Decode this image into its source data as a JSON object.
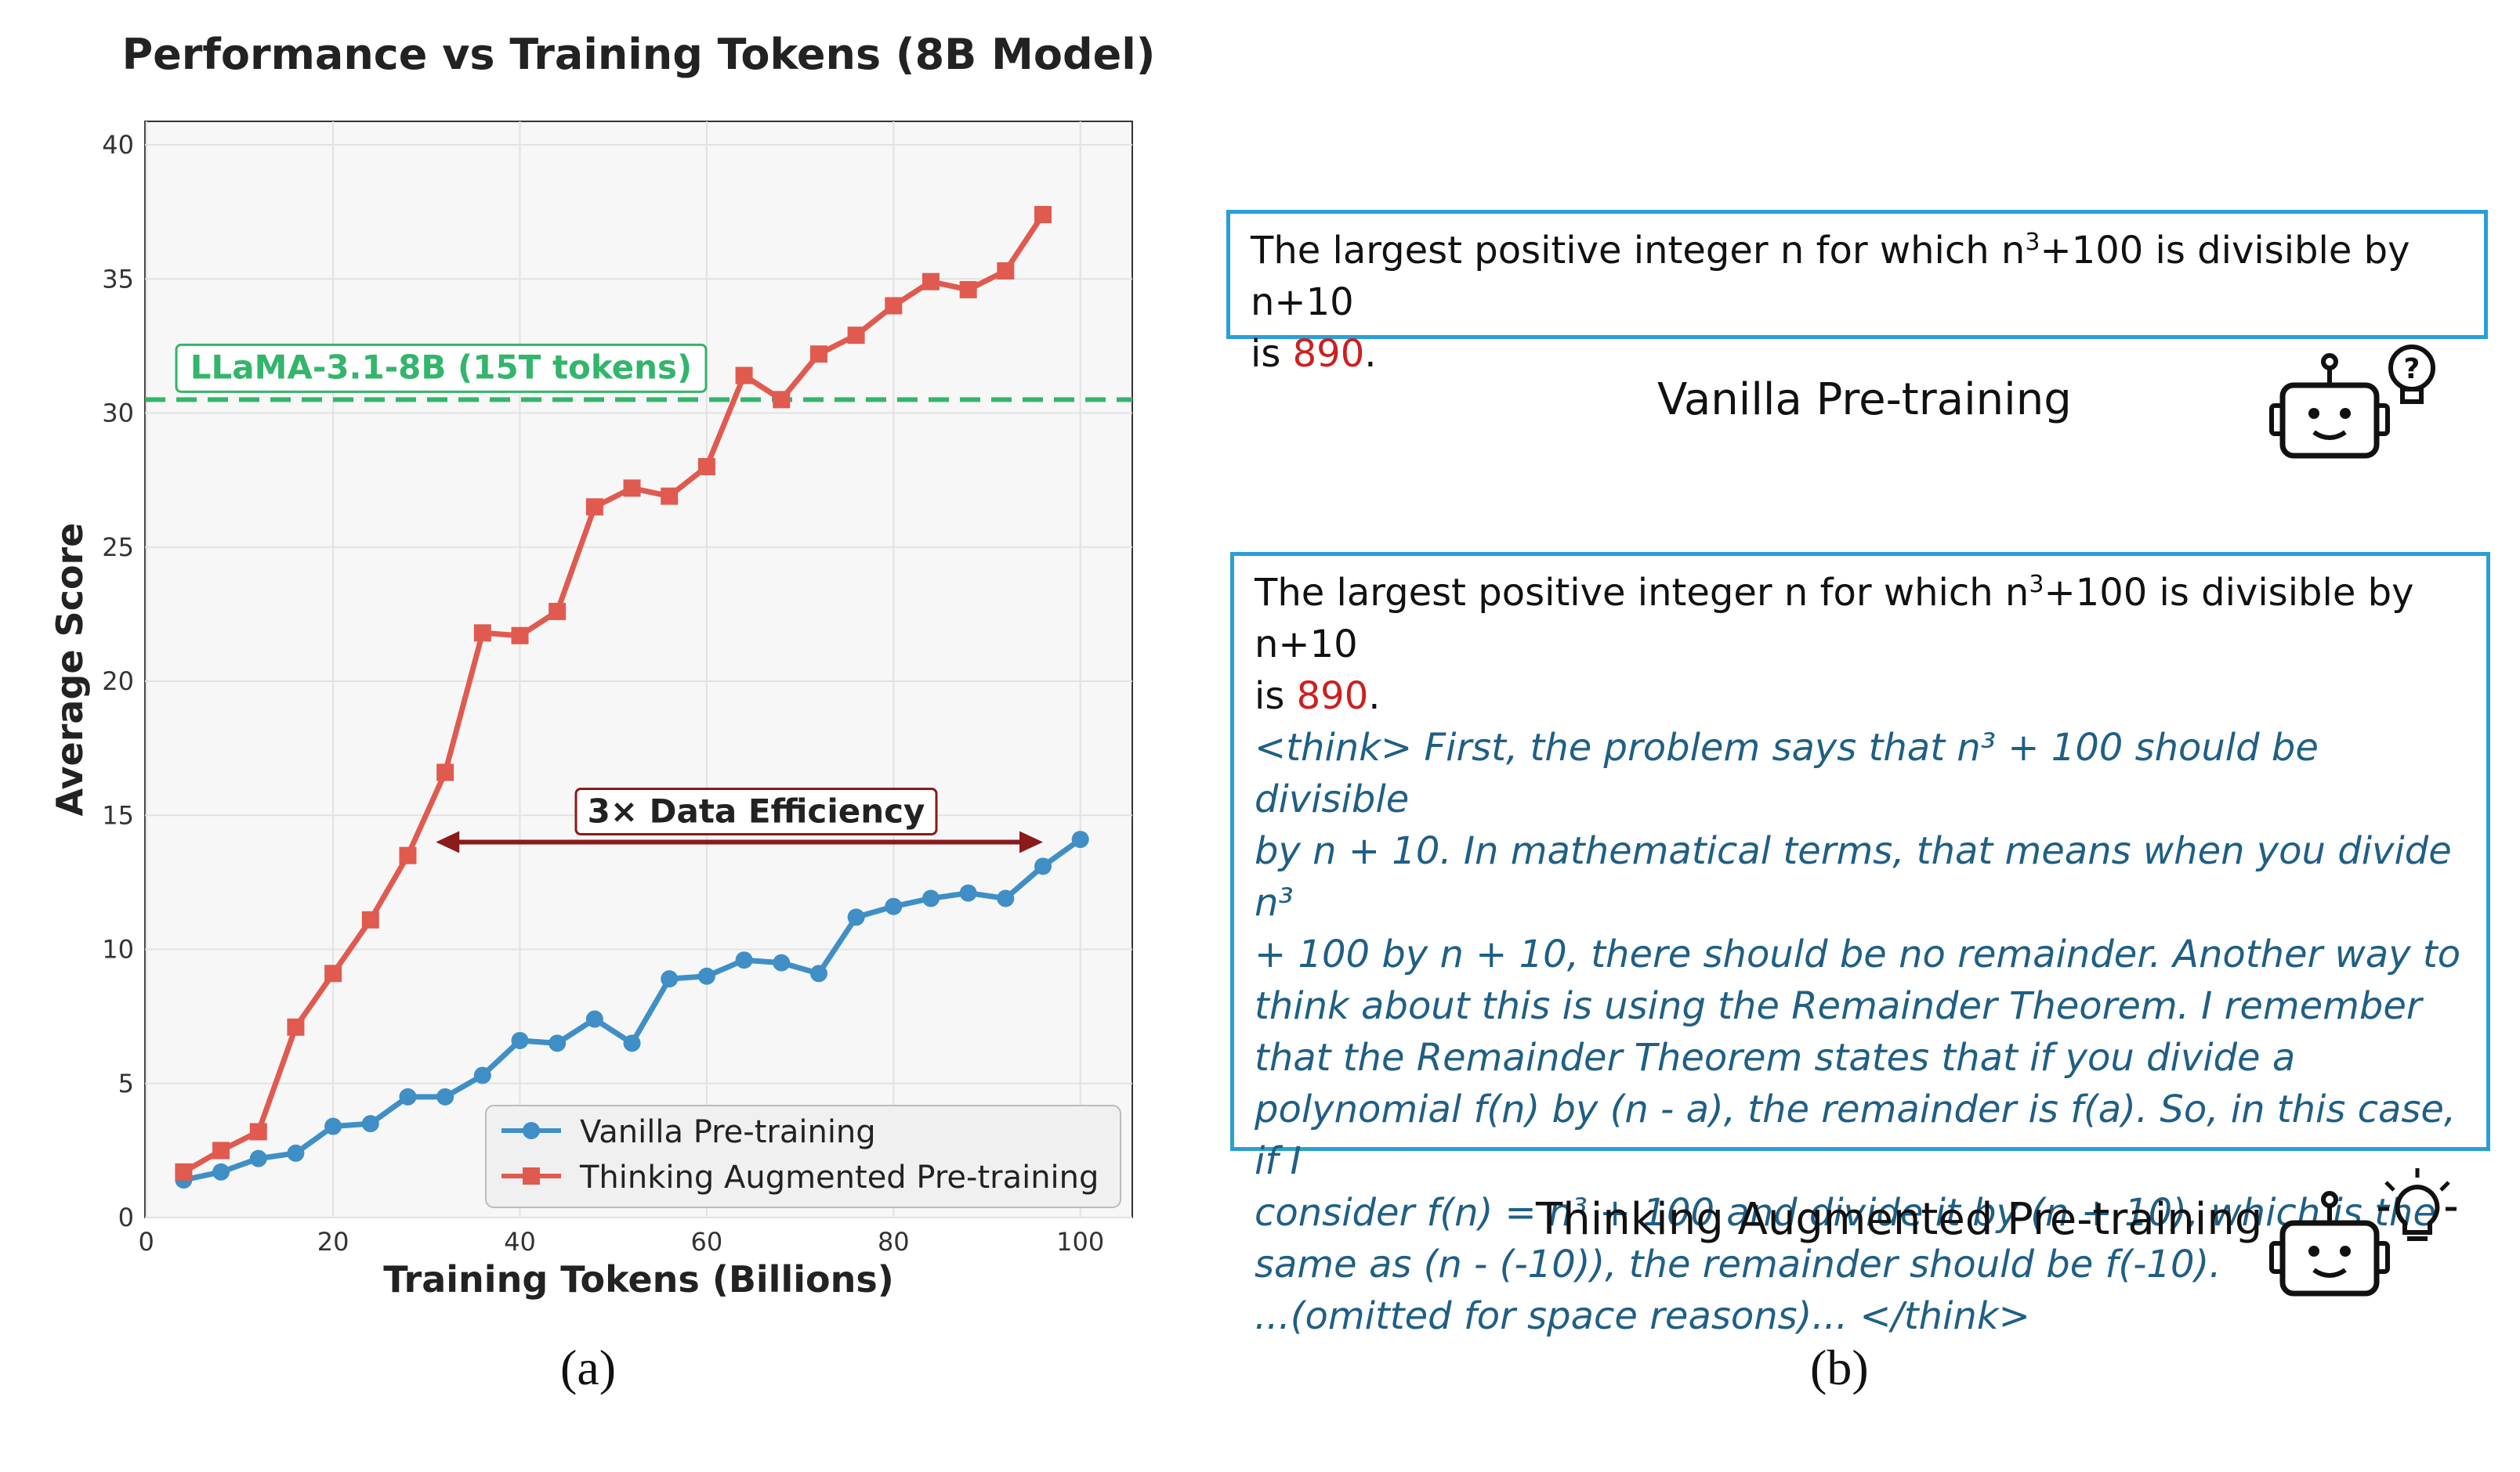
{
  "chart_data": {
    "type": "line",
    "title": "Performance vs Training Tokens (8B Model)",
    "xlabel": "Training Tokens (Billions)",
    "ylabel": "Average Score",
    "xlim": [
      0,
      105
    ],
    "ylim": [
      0,
      41
    ],
    "xticks": [
      0,
      20,
      40,
      60,
      80,
      100
    ],
    "yticks": [
      0,
      5,
      10,
      15,
      20,
      25,
      30,
      35,
      40
    ],
    "grid": true,
    "legend_position": "lower-right",
    "series": [
      {
        "name": "Vanilla Pre-training",
        "color": "#3f8fc6",
        "marker": "circle",
        "x": [
          4,
          8,
          12,
          16,
          20,
          24,
          28,
          32,
          36,
          40,
          44,
          48,
          52,
          56,
          60,
          64,
          68,
          72,
          76,
          80,
          84,
          88,
          92,
          96,
          100
        ],
        "y": [
          1.4,
          1.7,
          2.2,
          2.4,
          3.4,
          3.5,
          4.5,
          4.5,
          5.3,
          6.6,
          6.5,
          7.4,
          6.5,
          8.9,
          9.0,
          9.6,
          9.5,
          9.1,
          11.2,
          11.6,
          11.9,
          12.1,
          11.9,
          13.1,
          14.1
        ]
      },
      {
        "name": "Thinking Augmented Pre-training",
        "color": "#e05a4f",
        "marker": "square",
        "x": [
          4,
          8,
          12,
          16,
          20,
          24,
          28,
          32,
          36,
          40,
          44,
          48,
          52,
          56,
          60,
          64,
          68,
          72,
          76,
          80,
          84,
          88,
          92,
          96
        ],
        "y": [
          1.7,
          2.5,
          3.2,
          7.1,
          9.1,
          11.1,
          13.5,
          16.6,
          21.8,
          21.7,
          22.6,
          26.5,
          27.2,
          26.9,
          28.0,
          31.4,
          30.5,
          32.2,
          32.9,
          34.0,
          34.9,
          34.6,
          35.3,
          37.4
        ]
      }
    ],
    "reference_line": {
      "label": "LLaMA-3.1-8B (15T tokens)",
      "y": 30.5,
      "color": "#33b56b"
    },
    "annotation": {
      "label": "3× Data Efficiency",
      "x_start": 31,
      "x_end": 96,
      "y": 14.0,
      "color": "#8b1a1a"
    }
  },
  "panels": {
    "a_label": "(a)",
    "b_label": "(b)"
  },
  "vanilla_box": {
    "text_before": "The largest positive integer n for which n",
    "sup": "3",
    "text_after": "+100 is divisible by n+10",
    "line2_prefix": "is ",
    "answer": "890",
    "line2_suffix": "."
  },
  "vanilla_caption": "Vanilla Pre-training",
  "thinking_box": {
    "text_before": "The largest positive integer n for which n",
    "sup": "3",
    "text_after": "+100 is divisible by n+10",
    "line2_prefix": "is ",
    "answer": "890",
    "line2_suffix": ".",
    "think_lines": [
      "<think> First, the problem says that n³ + 100 should be divisible",
      "by n + 10. In mathematical terms, that means when you divide n³",
      "+ 100 by n + 10, there should be no remainder. Another way to",
      "think about this is using the Remainder Theorem. I remember",
      "that the Remainder Theorem states that if you divide a",
      "polynomial f(n) by (n - a), the remainder is f(a). So, in this case, if I",
      "consider f(n) = n³ + 100 and divide it by (n + 10), which is the",
      "same as (n - (-10)), the remainder should be f(-10).",
      "...(omitted for space reasons)... </think>"
    ]
  },
  "thinking_caption": "Thinking Augmented Pre-training",
  "icons": {
    "vanilla_robot": "robot-question-icon",
    "thinking_robot": "robot-lightbulb-icon"
  }
}
